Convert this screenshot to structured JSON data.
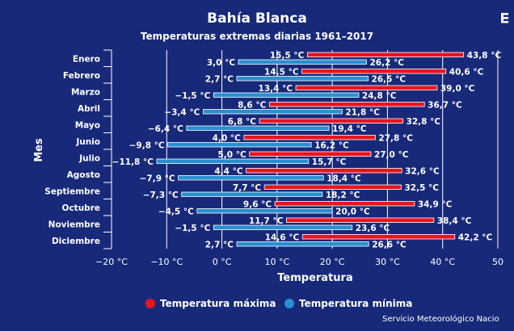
{
  "chart_data": {
    "type": "bar",
    "subtype": "floating-range",
    "orientation": "horizontal",
    "title": "Bahía Blanca",
    "subtitle": "Temperaturas extremas diarias 1961–2017",
    "xlabel": "Temperatura",
    "ylabel": "Mes",
    "xlim": [
      -20,
      50
    ],
    "x_ticks": [
      "−20 °C",
      "−10 °C",
      "0 °C",
      "10 °C",
      "20 °C",
      "30 °C",
      "40 °C",
      "50"
    ],
    "grid": "vertical",
    "legend_position": "bottom",
    "categories": [
      "Enero",
      "Febrero",
      "Marzo",
      "Abril",
      "Mayo",
      "Junio",
      "Julio",
      "Agosto",
      "Septiembre",
      "Octubre",
      "Noviembre",
      "Diciembre"
    ],
    "series": [
      {
        "name": "Temperatura máxima",
        "color": "#e8141e",
        "low": [
          15.5,
          14.5,
          13.4,
          8.6,
          6.8,
          4.0,
          5.0,
          4.4,
          7.7,
          9.6,
          11.7,
          14.6
        ],
        "high": [
          43.8,
          40.6,
          39.0,
          36.7,
          32.8,
          27.8,
          27.0,
          32.6,
          32.5,
          34.9,
          38.4,
          42.2
        ],
        "low_labels": [
          "15,5 °C",
          "14,5 °C",
          "13,4 °C",
          "8,6 °C",
          "6,8 °C",
          "4,0 °C",
          "5,0 °C",
          "4,4 °C",
          "7,7 °C",
          "9,6 °C",
          "11,7 °C",
          "14,6 °C"
        ],
        "high_labels": [
          "43,8 °C",
          "40,6 °C",
          "39,0 °C",
          "36,7 °C",
          "32,8 °C",
          "27,8 °C",
          "27,0 °C",
          "32,6 °C",
          "32,5 °C",
          "34,9 °C",
          "38,4 °C",
          "42,2 °C"
        ]
      },
      {
        "name": "Temperatura mínima",
        "color": "#2a8fd0",
        "low": [
          3.0,
          2.7,
          -1.5,
          -3.4,
          -6.4,
          -9.8,
          -11.8,
          -7.9,
          -7.3,
          -4.5,
          -1.5,
          2.7
        ],
        "high": [
          26.2,
          26.5,
          24.8,
          21.8,
          19.4,
          16.2,
          15.7,
          18.4,
          18.2,
          20.0,
          23.6,
          26.6
        ],
        "low_labels": [
          "3,0 °C",
          "2,7 °C",
          "−1,5 °C",
          "−3,4 °C",
          "−6,4 °C",
          "−9,8 °C",
          "−11,8 °C",
          "−7,9 °C",
          "−7,3 °C",
          "−4,5 °C",
          "−1,5 °C",
          "2,7 °C"
        ],
        "high_labels": [
          "26,2 °C",
          "26,5 °C",
          "24,8 °C",
          "21,8 °C",
          "19,4 °C",
          "16,2 °C",
          "15,7 °C",
          "18,4 °C",
          "18,2 °C",
          "20,0 °C",
          "23,6 °C",
          "26,6 °C"
        ]
      }
    ]
  },
  "credit": "Servicio Meteorológico Nacio",
  "menu_icon": "hamburger-menu-icon"
}
